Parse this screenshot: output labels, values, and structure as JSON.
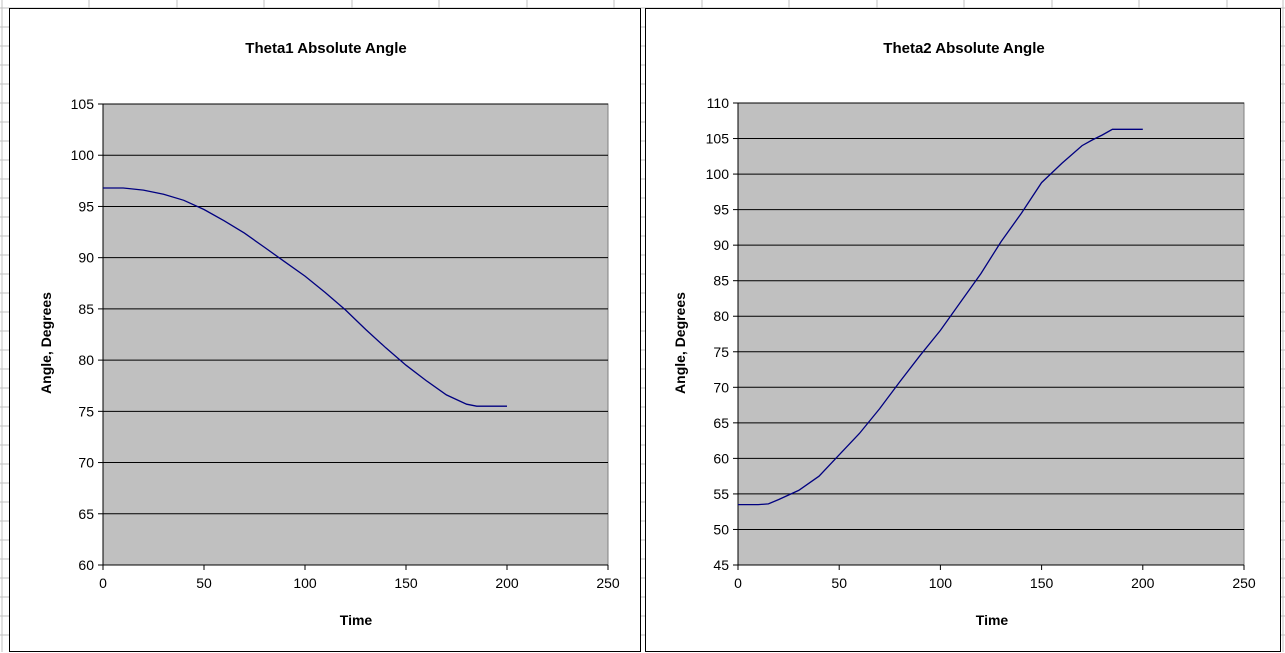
{
  "sheet": {
    "background": "#ffffff",
    "gridline_color": "#c0c0c0"
  },
  "chart_data": [
    {
      "type": "line",
      "title": "Theta1 Absolute Angle",
      "xlabel": "Time",
      "ylabel": "Angle, Degrees",
      "xlim": [
        0,
        250
      ],
      "ylim": [
        60,
        105
      ],
      "xticks": [
        0,
        50,
        100,
        150,
        200,
        250
      ],
      "yticks": [
        60,
        65,
        70,
        75,
        80,
        85,
        90,
        95,
        100,
        105
      ],
      "grid": true,
      "legend": "none",
      "plot_background": "#c0c0c0",
      "series": [
        {
          "color": "#000080",
          "x": [
            0,
            10,
            20,
            30,
            40,
            50,
            60,
            70,
            80,
            90,
            100,
            110,
            120,
            130,
            140,
            150,
            160,
            170,
            180,
            185,
            190,
            200
          ],
          "y": [
            96.8,
            96.8,
            96.6,
            96.2,
            95.6,
            94.7,
            93.6,
            92.4,
            91.0,
            89.6,
            88.2,
            86.6,
            84.9,
            83.0,
            81.2,
            79.5,
            78.0,
            76.6,
            75.7,
            75.5,
            75.5,
            75.5
          ]
        }
      ]
    },
    {
      "type": "line",
      "title": "Theta2 Absolute Angle",
      "xlabel": "Time",
      "ylabel": "Angle, Degrees",
      "xlim": [
        0,
        250
      ],
      "ylim": [
        45,
        110
      ],
      "xticks": [
        0,
        50,
        100,
        150,
        200,
        250
      ],
      "yticks": [
        45,
        50,
        55,
        60,
        65,
        70,
        75,
        80,
        85,
        90,
        95,
        100,
        105,
        110
      ],
      "grid": true,
      "legend": "none",
      "plot_background": "#c0c0c0",
      "series": [
        {
          "color": "#000080",
          "x": [
            0,
            10,
            15,
            20,
            30,
            40,
            50,
            60,
            70,
            80,
            90,
            100,
            110,
            120,
            130,
            140,
            150,
            160,
            170,
            175,
            180,
            185,
            190,
            200
          ],
          "y": [
            53.5,
            53.5,
            53.6,
            54.2,
            55.5,
            57.5,
            60.5,
            63.5,
            67.0,
            70.8,
            74.5,
            78.0,
            82.0,
            86.0,
            90.5,
            94.5,
            98.8,
            101.5,
            104.0,
            104.8,
            105.5,
            106.3,
            106.3,
            106.3
          ]
        }
      ]
    }
  ]
}
